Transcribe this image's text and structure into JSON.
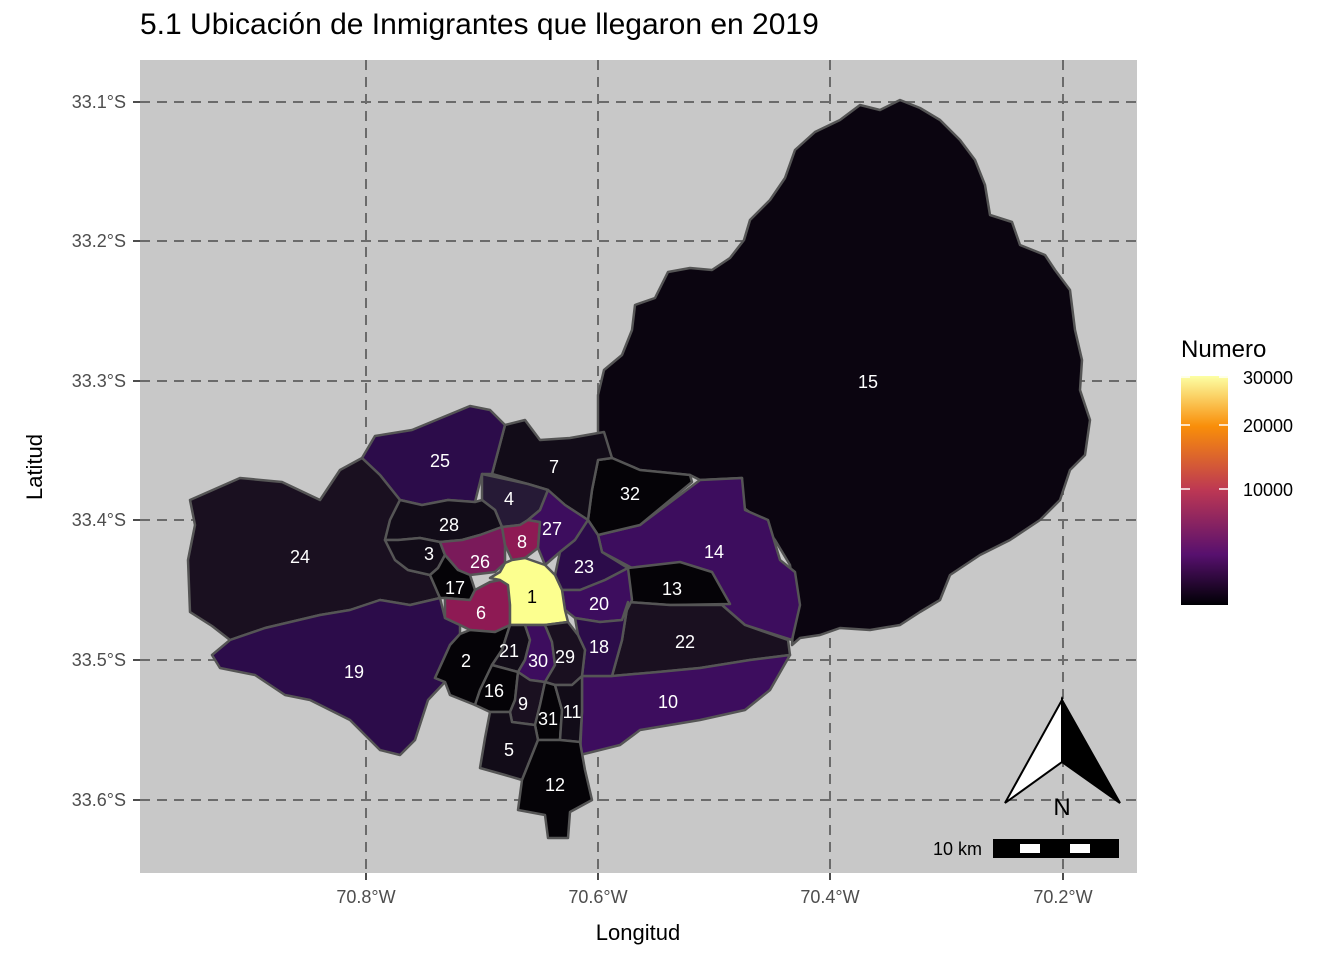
{
  "title": "5.1 Ubicación de Inmigrantes que llegaron en 2019",
  "axes": {
    "xlabel": "Longitud",
    "ylabel": "Latitud",
    "x_ticks": [
      "70.8°W",
      "70.6°W",
      "70.4°W",
      "70.2°W"
    ],
    "y_ticks": [
      "33.1°S",
      "33.2°S",
      "33.3°S",
      "33.4°S",
      "33.5°S",
      "33.6°S"
    ]
  },
  "legend": {
    "title": "Numero",
    "ticks": [
      "30000",
      "20000",
      "10000"
    ],
    "colors": [
      "#fcffa4",
      "#f98e09",
      "#bc3754",
      "#57106e",
      "#000004"
    ]
  },
  "colors": {
    "panel": "#c8c8c8",
    "grid": "#6b6b6b",
    "border": "#555555",
    "low": "#0b0510",
    "dark": "#1a1020",
    "deep_purple": "#2c0c4a",
    "purple": "#3d0d5e",
    "magenta": "#7a1a5a",
    "crimson": "#8e1a54",
    "highlight": "#fcff8f"
  },
  "regions": [
    {
      "id": "15",
      "label": "15"
    },
    {
      "id": "14",
      "label": "14"
    },
    {
      "id": "22",
      "label": "22"
    },
    {
      "id": "10",
      "label": "10"
    },
    {
      "id": "13",
      "label": "13"
    },
    {
      "id": "32",
      "label": "32"
    },
    {
      "id": "7",
      "label": "7"
    },
    {
      "id": "25",
      "label": "25"
    },
    {
      "id": "24",
      "label": "24"
    },
    {
      "id": "19",
      "label": "19"
    },
    {
      "id": "4",
      "label": "4"
    },
    {
      "id": "28",
      "label": "28"
    },
    {
      "id": "3",
      "label": "3"
    },
    {
      "id": "26",
      "label": "26"
    },
    {
      "id": "17",
      "label": "17"
    },
    {
      "id": "8",
      "label": "8"
    },
    {
      "id": "27",
      "label": "27"
    },
    {
      "id": "23",
      "label": "23"
    },
    {
      "id": "20",
      "label": "20"
    },
    {
      "id": "6",
      "label": "6"
    },
    {
      "id": "1",
      "label": "1"
    },
    {
      "id": "18",
      "label": "18"
    },
    {
      "id": "2",
      "label": "2"
    },
    {
      "id": "21",
      "label": "21"
    },
    {
      "id": "30",
      "label": "30"
    },
    {
      "id": "29",
      "label": "29"
    },
    {
      "id": "16",
      "label": "16"
    },
    {
      "id": "9",
      "label": "9"
    },
    {
      "id": "31",
      "label": "31"
    },
    {
      "id": "11",
      "label": "11"
    },
    {
      "id": "5",
      "label": "5"
    },
    {
      "id": "12",
      "label": "12"
    }
  ],
  "north_arrow": {
    "label": "N"
  },
  "scale_bar": {
    "label": "10 km"
  }
}
